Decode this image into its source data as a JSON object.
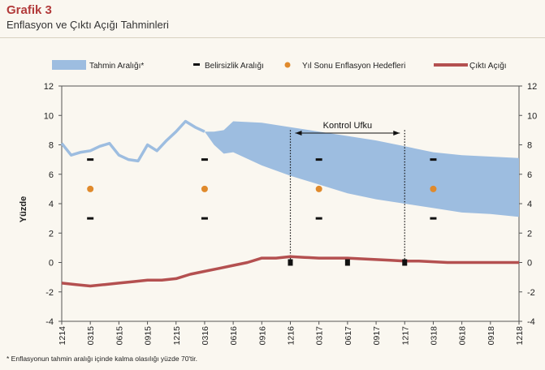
{
  "header": {
    "title": "Grafik 3",
    "subtitle": "Enflasyon ve Çıktı Açığı Tahminleri"
  },
  "footnote": "* Enflasyonun tahmin aralığı içinde kalma olasılığı yüzde 70'tir.",
  "colors": {
    "band": "#9dbde0",
    "uncertainty": "#111111",
    "target": "#e08a2c",
    "output_gap": "#b45050",
    "background": "#faf7f0"
  },
  "chart_data": {
    "type": "line",
    "ylabel": "Yüzde",
    "ylim": [
      -4,
      12
    ],
    "yticks": [
      -4,
      -2,
      0,
      2,
      4,
      6,
      8,
      10,
      12
    ],
    "right_axis": true,
    "grid": false,
    "legend_position": "top",
    "categories": [
      "1214",
      "0315",
      "0615",
      "0915",
      "1215",
      "0316",
      "0616",
      "0916",
      "1216",
      "0317",
      "0617",
      "0917",
      "1217",
      "0318",
      "0618",
      "0918",
      "1218"
    ],
    "annotation": {
      "text": "Kontrol Ufku",
      "from": "1216",
      "to": "1217"
    },
    "series": [
      {
        "name": "Tahmin Aralığı*",
        "kind": "band",
        "history": {
          "x": [
            0,
            0.33,
            0.67,
            1,
            1.33,
            1.67,
            2,
            2.33,
            2.67,
            3,
            3.33,
            3.67,
            4,
            4.33,
            4.67,
            5
          ],
          "values": [
            8.1,
            7.3,
            7.5,
            7.6,
            7.9,
            8.1,
            7.3,
            7.0,
            6.9,
            8.0,
            7.6,
            8.3,
            8.9,
            9.6,
            9.2,
            8.9
          ]
        },
        "forecast": {
          "x": [
            5,
            5.33,
            5.67,
            6,
            7,
            8,
            9,
            10,
            11,
            12,
            13,
            14,
            15,
            16
          ],
          "upper": [
            8.9,
            8.9,
            9.0,
            9.6,
            9.5,
            9.2,
            8.9,
            8.6,
            8.3,
            7.9,
            7.5,
            7.3,
            7.2,
            7.1
          ],
          "lower": [
            8.9,
            8.0,
            7.4,
            7.5,
            6.6,
            5.9,
            5.3,
            4.7,
            4.3,
            4.0,
            3.7,
            3.4,
            3.3,
            3.1
          ]
        }
      },
      {
        "name": "Belirsizlik Aralığı",
        "kind": "ticks",
        "x": [
          1,
          5,
          9,
          13
        ],
        "upper": [
          7.0,
          7.0,
          7.0,
          7.0
        ],
        "lower": [
          3.0,
          3.0,
          3.0,
          3.0
        ]
      },
      {
        "name": "Yıl Sonu Enflasyon Hedefleri",
        "kind": "points",
        "x": [
          1,
          5,
          9,
          13
        ],
        "values": [
          5,
          5,
          5,
          5
        ]
      },
      {
        "name": "Çıktı Açığı",
        "kind": "line",
        "x": [
          0,
          0.5,
          1,
          1.5,
          2,
          2.5,
          3,
          3.5,
          4,
          4.5,
          5,
          5.5,
          6,
          6.5,
          7,
          7.5,
          8,
          8.5,
          9,
          9.5,
          10,
          10.5,
          11,
          11.5,
          12,
          12.5,
          13,
          13.5,
          14,
          14.5,
          15,
          15.5,
          16
        ],
        "values": [
          -1.4,
          -1.5,
          -1.6,
          -1.5,
          -1.4,
          -1.3,
          -1.2,
          -1.2,
          -1.1,
          -0.8,
          -0.6,
          -0.4,
          -0.2,
          0.0,
          0.3,
          0.3,
          0.4,
          0.35,
          0.3,
          0.3,
          0.3,
          0.25,
          0.2,
          0.15,
          0.1,
          0.1,
          0.05,
          0.0,
          0.0,
          0.0,
          0.0,
          0.0,
          0.0
        ]
      }
    ],
    "markers_on_zero": [
      8,
      10,
      12
    ],
    "markers_color": "#111111"
  }
}
